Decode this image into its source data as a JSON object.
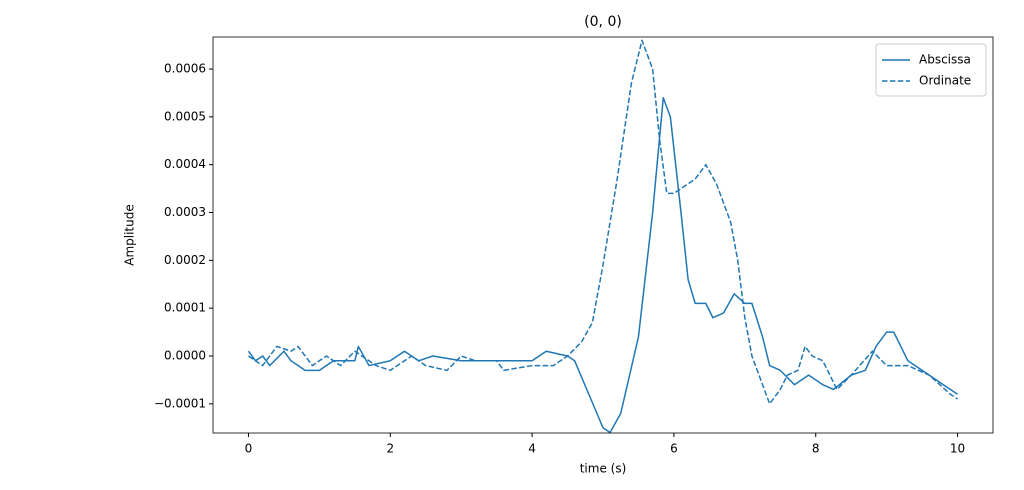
{
  "chart_data": {
    "type": "line",
    "title": "(0, 0)",
    "xlabel": "time (s)",
    "ylabel": "Amplitude",
    "xlim": [
      -0.5,
      10.5
    ],
    "xticks": [
      0,
      2,
      4,
      6,
      8,
      10
    ],
    "ylim": [
      -0.000161,
      0.000667
    ],
    "yticks": [
      {
        "value": -0.0001,
        "label": "−0.0001"
      },
      {
        "value": 0,
        "label": "0.0000"
      },
      0.0001,
      0.0002,
      0.0003,
      0.0004,
      0.0005,
      0.0006
    ],
    "legend": "upper right",
    "grid": false,
    "series": [
      {
        "name": "Abscissa",
        "color": "#1f77b4",
        "dash": "solid",
        "x": [
          0,
          0.1,
          0.2,
          0.3,
          0.5,
          0.6,
          0.8,
          1.0,
          1.2,
          1.5,
          1.55,
          1.7,
          2.0,
          2.2,
          2.4,
          2.6,
          3.0,
          3.5,
          4.0,
          4.2,
          4.5,
          4.6,
          4.8,
          5.0,
          5.1,
          5.25,
          5.5,
          5.7,
          5.85,
          5.95,
          6.1,
          6.2,
          6.3,
          6.45,
          6.55,
          6.7,
          6.85,
          7.0,
          7.1,
          7.25,
          7.35,
          7.5,
          7.7,
          7.9,
          8.1,
          8.25,
          8.5,
          8.7,
          8.85,
          9.0,
          9.1,
          9.3,
          9.6,
          9.8,
          10
        ],
        "values": [
          1e-05,
          -1e-05,
          0.0,
          -2e-05,
          1e-05,
          -1e-05,
          -3e-05,
          -3e-05,
          -1e-05,
          -1e-05,
          2e-05,
          -2e-05,
          -1e-05,
          1e-05,
          -1e-05,
          0.0,
          -1e-05,
          -1e-05,
          -1e-05,
          1e-05,
          0.0,
          -1e-05,
          -8e-05,
          -0.00015,
          -0.00016,
          -0.00012,
          4e-05,
          0.0003,
          0.00054,
          0.0005,
          0.0003,
          0.00016,
          0.00011,
          0.00011,
          8e-05,
          9e-05,
          0.00013,
          0.00011,
          0.00011,
          4e-05,
          -2e-05,
          -3e-05,
          -6e-05,
          -4e-05,
          -6e-05,
          -7e-05,
          -4e-05,
          -3e-05,
          2e-05,
          5e-05,
          5e-05,
          -1e-05,
          -4e-05,
          -6e-05,
          -8e-05
        ]
      },
      {
        "name": "Ordinate",
        "color": "#1f77b4",
        "dash": "dashed",
        "x": [
          0,
          0.2,
          0.4,
          0.6,
          0.7,
          0.9,
          1.1,
          1.3,
          1.5,
          1.8,
          2.0,
          2.3,
          2.5,
          2.8,
          3.0,
          3.2,
          3.5,
          3.6,
          4.0,
          4.3,
          4.5,
          4.7,
          4.85,
          5.0,
          5.2,
          5.4,
          5.55,
          5.7,
          5.8,
          5.9,
          6.0,
          6.2,
          6.3,
          6.45,
          6.6,
          6.8,
          6.9,
          7.0,
          7.1,
          7.25,
          7.35,
          7.5,
          7.6,
          7.75,
          7.85,
          7.95,
          8.1,
          8.3,
          8.5,
          8.8,
          9.0,
          9.3,
          9.6,
          9.9,
          10
        ],
        "values": [
          0.0,
          -2e-05,
          2e-05,
          1e-05,
          2e-05,
          -2e-05,
          0.0,
          -2e-05,
          1e-05,
          -2e-05,
          -3e-05,
          0.0,
          -2e-05,
          -3e-05,
          0.0,
          -1e-05,
          -1e-05,
          -3e-05,
          -2e-05,
          -2e-05,
          0.0,
          3e-05,
          7e-05,
          0.00019,
          0.00037,
          0.00057,
          0.00066,
          0.0006,
          0.00045,
          0.00034,
          0.00034,
          0.00036,
          0.00037,
          0.0004,
          0.00036,
          0.00028,
          0.0002,
          8e-05,
          0.0,
          -6e-05,
          -0.0001,
          -7e-05,
          -4e-05,
          -3e-05,
          2e-05,
          0.0,
          -1e-05,
          -7e-05,
          -4e-05,
          1e-05,
          -2e-05,
          -2e-05,
          -4e-05,
          -8e-05,
          -9e-05
        ]
      }
    ]
  }
}
